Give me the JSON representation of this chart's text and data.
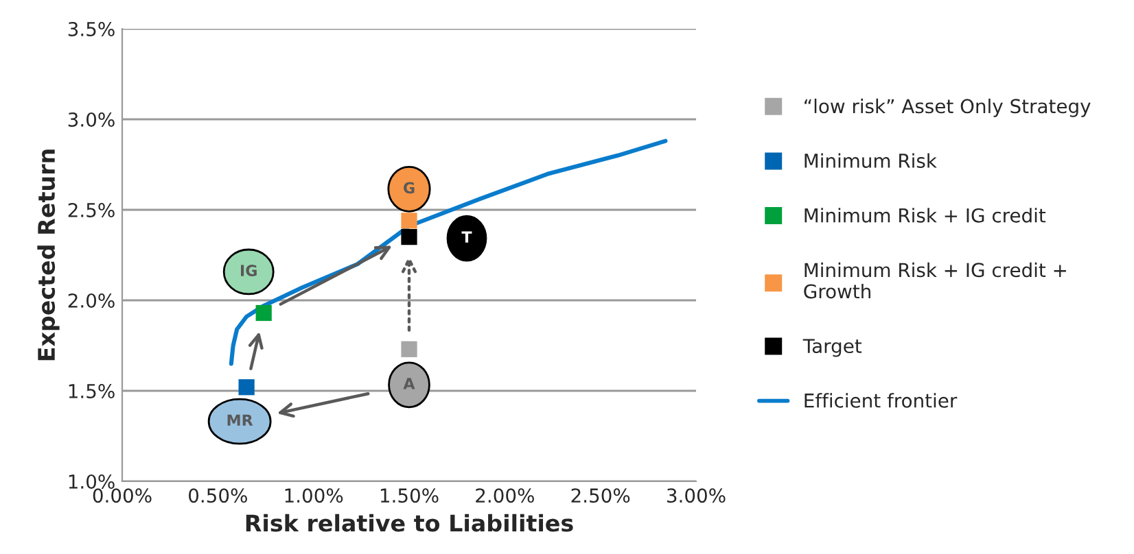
{
  "chart_data": {
    "type": "scatter",
    "xlabel": "Risk relative to Liabilities",
    "ylabel": "Expected Return",
    "xlim": [
      0,
      3
    ],
    "ylim": [
      1,
      3.5
    ],
    "xticks": [
      {
        "value": 0,
        "label": "0.00%"
      },
      {
        "value": 0.5,
        "label": "0.50%"
      },
      {
        "value": 1,
        "label": "1.00%"
      },
      {
        "value": 1.5,
        "label": "1.50%"
      },
      {
        "value": 2,
        "label": "2.00%"
      },
      {
        "value": 2.5,
        "label": "2.50%"
      },
      {
        "value": 3,
        "label": "3.00%"
      }
    ],
    "yticks": [
      {
        "value": 1,
        "label": "1.0%"
      },
      {
        "value": 1.5,
        "label": "1.5%"
      },
      {
        "value": 2,
        "label": "2.0%"
      },
      {
        "value": 2.5,
        "label": "2.5%"
      },
      {
        "value": 3,
        "label": "3.0%"
      },
      {
        "value": 3.5,
        "label": "3.5%"
      }
    ],
    "grid": "y",
    "legend": "right",
    "series": [
      {
        "name": "“low risk” Asset Only Strategy",
        "color": "#a6a6a6",
        "marker": "square",
        "x": [
          1.5
        ],
        "values": [
          1.73
        ]
      },
      {
        "name": "Minimum Risk",
        "color": "#0066b3",
        "marker": "square",
        "x": [
          0.65
        ],
        "values": [
          1.52
        ]
      },
      {
        "name": "Minimum Risk + IG credit",
        "color": "#00a03c",
        "marker": "square",
        "x": [
          0.74
        ],
        "values": [
          1.93
        ]
      },
      {
        "name": "Minimum Risk + IG credit + Growth",
        "color": "#f79646",
        "marker": "square",
        "x": [
          1.5
        ],
        "values": [
          2.44
        ]
      },
      {
        "name": "Target",
        "color": "#000000",
        "marker": "square",
        "x": [
          1.5
        ],
        "values": [
          2.35
        ]
      },
      {
        "name": "Efficient frontier",
        "type": "line",
        "color": "#0a7ccc",
        "marker": "none",
        "x": [
          0.57,
          0.58,
          0.6,
          0.65,
          0.74,
          0.94,
          1.23,
          1.5,
          1.87,
          2.23,
          2.59,
          2.84
        ],
        "values": [
          1.65,
          1.75,
          1.84,
          1.91,
          1.97,
          2.07,
          2.2,
          2.41,
          2.56,
          2.7,
          2.8,
          2.88
        ]
      }
    ],
    "annotations": [
      "A",
      "MR",
      "IG",
      "G",
      "T"
    ]
  }
}
